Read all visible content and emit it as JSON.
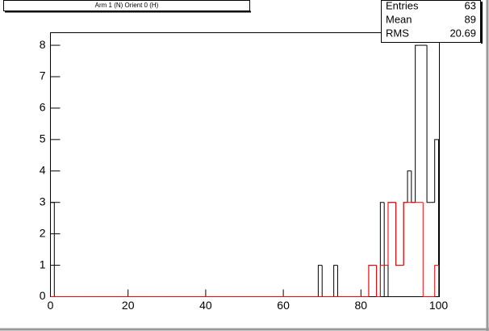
{
  "chart_data": {
    "type": "histogram",
    "title": "Arm 1 (N) Orient 0 (H)",
    "bins": [
      0,
      1,
      2,
      3,
      4,
      5,
      6,
      7,
      8,
      9,
      10,
      11,
      12,
      13,
      14,
      15,
      16,
      17,
      18,
      19,
      20,
      21,
      22,
      23,
      24,
      25,
      26,
      27,
      28,
      29,
      30,
      31,
      32,
      33,
      34,
      35,
      36,
      37,
      38,
      39,
      40,
      41,
      42,
      43,
      44,
      45,
      46,
      47,
      48,
      49,
      50,
      51,
      52,
      53,
      54,
      55,
      56,
      57,
      58,
      59,
      60,
      61,
      62,
      63,
      64,
      65,
      66,
      67,
      68,
      69,
      70,
      71,
      72,
      73,
      74,
      75,
      76,
      77,
      78,
      79,
      80,
      81,
      82,
      83,
      84,
      85,
      86,
      87,
      88,
      89,
      90,
      91,
      92,
      93,
      94,
      95,
      96,
      97,
      98,
      99,
      100
    ],
    "series": [
      {
        "color": "#000000",
        "counts": [
          3,
          0,
          0,
          0,
          0,
          0,
          0,
          0,
          0,
          0,
          0,
          0,
          0,
          0,
          0,
          0,
          0,
          0,
          0,
          0,
          0,
          0,
          0,
          0,
          0,
          0,
          0,
          0,
          0,
          0,
          0,
          0,
          0,
          0,
          0,
          0,
          0,
          0,
          0,
          0,
          0,
          0,
          0,
          0,
          0,
          0,
          0,
          0,
          0,
          0,
          0,
          0,
          0,
          0,
          0,
          0,
          0,
          0,
          0,
          0,
          0,
          0,
          0,
          0,
          0,
          0,
          0,
          0,
          0,
          1,
          0,
          0,
          0,
          1,
          0,
          0,
          0,
          0,
          0,
          0,
          0,
          0,
          1,
          1,
          0,
          3,
          0,
          3,
          3,
          1,
          1,
          3,
          4,
          3,
          8,
          8,
          8,
          3,
          3,
          5
        ]
      },
      {
        "color": "#ff0000",
        "counts": [
          0,
          0,
          0,
          0,
          0,
          0,
          0,
          0,
          0,
          0,
          0,
          0,
          0,
          0,
          0,
          0,
          0,
          0,
          0,
          0,
          0,
          0,
          0,
          0,
          0,
          0,
          0,
          0,
          0,
          0,
          0,
          0,
          0,
          0,
          0,
          0,
          0,
          0,
          0,
          0,
          0,
          0,
          0,
          0,
          0,
          0,
          0,
          0,
          0,
          0,
          0,
          0,
          0,
          0,
          0,
          0,
          0,
          0,
          0,
          0,
          0,
          0,
          0,
          0,
          0,
          0,
          0,
          0,
          0,
          0,
          0,
          0,
          0,
          0,
          0,
          0,
          0,
          0,
          0,
          0,
          0,
          0,
          1,
          1,
          0,
          1,
          1,
          3,
          3,
          1,
          1,
          3,
          3,
          3,
          3,
          3,
          0,
          0,
          0,
          1
        ]
      }
    ],
    "xlim": [
      0,
      100
    ],
    "xticks": [
      0,
      20,
      40,
      60,
      80,
      100
    ],
    "ylim": [
      0,
      8.4
    ],
    "yticks": [
      0,
      1,
      2,
      3,
      4,
      5,
      6,
      7,
      8
    ],
    "stats": [
      {
        "label": "Entries",
        "value": 63
      },
      {
        "label": "Mean",
        "value": 89
      },
      {
        "label": "RMS",
        "value": 20.69
      }
    ]
  }
}
